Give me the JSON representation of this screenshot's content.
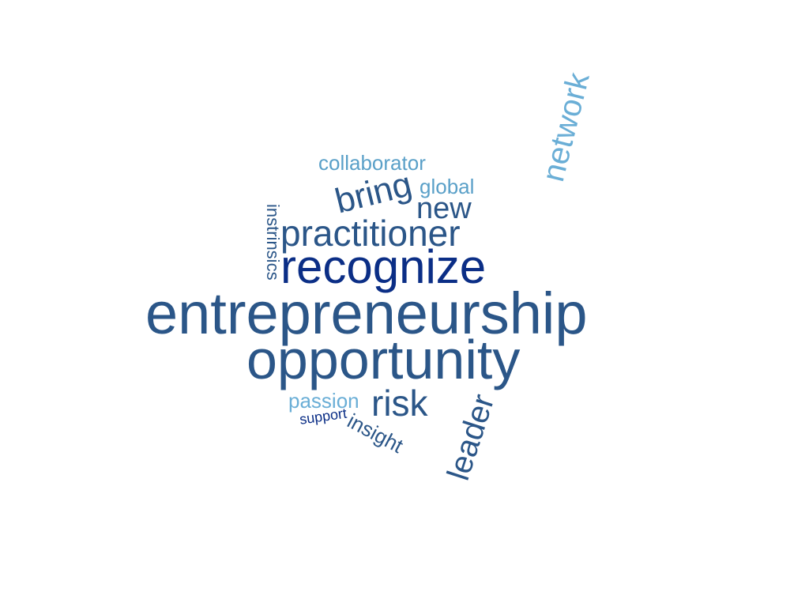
{
  "colors": {
    "dark_navy": "#0b2e86",
    "steel_blue": "#2b5688",
    "mid_blue": "#3a6a9c",
    "light_blue": "#5aa0c8",
    "sky_blue": "#6aaed6"
  },
  "words": {
    "entrepreneurship": "entrepreneurship",
    "opportunity": "opportunity",
    "recognize": "recognize",
    "practitioner": "practitioner",
    "bring": "bring",
    "new": "new",
    "collaborator": "collaborator",
    "global": "global",
    "network": "network",
    "instrinsics": "instrinsics",
    "risk": "risk",
    "passion": "passion",
    "support": "support",
    "insight": "insight",
    "leader": "leader"
  }
}
